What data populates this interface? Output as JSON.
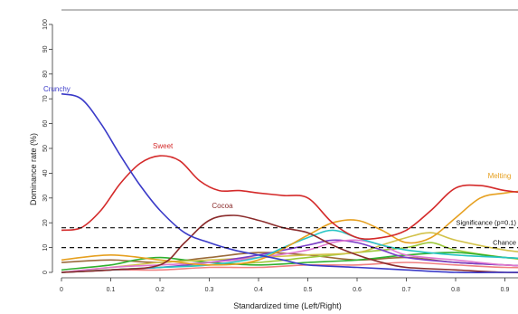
{
  "chart_data": {
    "type": "line",
    "title": "",
    "xlabel": "Standardized time (Left/Right)",
    "ylabel": "Dominance rate (%)",
    "xlim": [
      0,
      1
    ],
    "ylim": [
      0,
      100
    ],
    "x_ticks": [
      0,
      0.1,
      0.2,
      0.3,
      0.4,
      0.5,
      0.6,
      0.7,
      0.8,
      0.9
    ],
    "x_tick_labels": [
      "0",
      "0.1",
      "0.2",
      "0.3",
      "0.4",
      "0.5",
      "0.6",
      "0.7",
      "0.8",
      "0.9"
    ],
    "y_ticks": [
      0,
      10,
      20,
      30,
      40,
      50,
      60,
      70,
      80,
      90,
      100
    ],
    "y_tick_labels": [
      "0",
      "10",
      "20",
      "30",
      "40",
      "50",
      "60",
      "70",
      "80",
      "90",
      "100"
    ],
    "grid": false,
    "reference_lines": [
      {
        "label": "Significance (p=0.1)",
        "y": 18
      },
      {
        "label": "Chance",
        "y": 10
      }
    ],
    "series": [
      {
        "name": "Crunchy",
        "color": "#3a3ac8",
        "labeled": true,
        "label_x": 0.0,
        "label_y": 73,
        "x": [
          0,
          0.04,
          0.08,
          0.12,
          0.16,
          0.2,
          0.25,
          0.3,
          0.35,
          0.4,
          0.45,
          0.5,
          0.6,
          0.7,
          0.8,
          0.9,
          1.0
        ],
        "y": [
          72,
          70,
          60,
          47,
          35,
          25,
          16,
          12,
          9,
          7,
          5,
          3,
          2,
          1,
          0,
          0,
          0
        ]
      },
      {
        "name": "Sweet",
        "color": "#d42a2a",
        "labeled": true,
        "label_x": 0.2,
        "label_y": 50,
        "x": [
          0,
          0.04,
          0.08,
          0.12,
          0.16,
          0.2,
          0.24,
          0.28,
          0.32,
          0.36,
          0.4,
          0.45,
          0.5,
          0.55,
          0.6,
          0.65,
          0.7,
          0.75,
          0.8,
          0.85,
          0.9,
          0.95,
          1.0
        ],
        "y": [
          17,
          18,
          25,
          36,
          44,
          47,
          45,
          37,
          33,
          33,
          32,
          31,
          30,
          20,
          14,
          14,
          17,
          25,
          34,
          35,
          33,
          32,
          32
        ]
      },
      {
        "name": "Cocoa",
        "color": "#8b2b2b",
        "labeled": true,
        "label_x": 0.32,
        "label_y": 26,
        "x": [
          0,
          0.1,
          0.2,
          0.25,
          0.3,
          0.35,
          0.4,
          0.45,
          0.5,
          0.55,
          0.6,
          0.65,
          0.7,
          0.8,
          0.9,
          1.0
        ],
        "y": [
          0,
          1,
          3,
          12,
          21,
          23,
          21,
          18,
          16,
          11,
          7,
          4,
          2,
          1,
          0,
          0
        ]
      },
      {
        "name": "Melting",
        "color": "#e6a020",
        "labeled": true,
        "label_x": 0.88,
        "label_y": 38,
        "x": [
          0,
          0.1,
          0.2,
          0.3,
          0.4,
          0.5,
          0.55,
          0.6,
          0.65,
          0.7,
          0.75,
          0.8,
          0.85,
          0.9,
          0.95,
          1.0
        ],
        "y": [
          5,
          7,
          5,
          3,
          5,
          15,
          20,
          21,
          17,
          12,
          14,
          22,
          30,
          32,
          33,
          33
        ]
      },
      {
        "name": "",
        "color": "#27c4c4",
        "labeled": false,
        "x": [
          0,
          0.1,
          0.2,
          0.3,
          0.4,
          0.45,
          0.5,
          0.55,
          0.6,
          0.65,
          0.7,
          0.8,
          0.9,
          1.0
        ],
        "y": [
          0,
          1,
          2,
          3,
          6,
          10,
          14,
          17,
          14,
          11,
          9,
          7,
          6,
          5
        ]
      },
      {
        "name": "",
        "color": "#e077d0",
        "labeled": false,
        "x": [
          0,
          0.1,
          0.2,
          0.3,
          0.4,
          0.5,
          0.55,
          0.6,
          0.65,
          0.7,
          0.8,
          0.9,
          1.0
        ],
        "y": [
          0,
          2,
          3,
          4,
          6,
          9,
          12,
          13,
          11,
          7,
          5,
          3,
          2
        ]
      },
      {
        "name": "",
        "color": "#7a3ec8",
        "labeled": false,
        "x": [
          0,
          0.1,
          0.2,
          0.3,
          0.4,
          0.5,
          0.55,
          0.6,
          0.65,
          0.7,
          0.8,
          0.9,
          1.0
        ],
        "y": [
          0,
          1,
          2,
          4,
          7,
          11,
          13,
          12,
          9,
          6,
          4,
          3,
          2
        ]
      },
      {
        "name": "",
        "color": "#d2c24a",
        "labeled": false,
        "x": [
          0,
          0.1,
          0.2,
          0.3,
          0.4,
          0.5,
          0.6,
          0.65,
          0.7,
          0.75,
          0.8,
          0.9,
          1.0
        ],
        "y": [
          0,
          2,
          4,
          5,
          6,
          7,
          8,
          11,
          14,
          16,
          13,
          9,
          7
        ]
      },
      {
        "name": "",
        "color": "#2fb02f",
        "labeled": false,
        "x": [
          0,
          0.1,
          0.15,
          0.2,
          0.25,
          0.3,
          0.4,
          0.5,
          0.6,
          0.7,
          0.8,
          0.9,
          1.0
        ],
        "y": [
          1,
          3,
          5,
          6,
          5,
          4,
          3,
          4,
          5,
          7,
          8,
          6,
          5
        ]
      },
      {
        "name": "",
        "color": "#9cc83a",
        "labeled": false,
        "x": [
          0,
          0.1,
          0.2,
          0.3,
          0.4,
          0.5,
          0.6,
          0.7,
          0.75,
          0.8,
          0.9,
          1.0
        ],
        "y": [
          0,
          1,
          2,
          3,
          4,
          6,
          8,
          10,
          12,
          9,
          6,
          4
        ]
      },
      {
        "name": "",
        "color": "#9b6a3a",
        "labeled": false,
        "x": [
          0,
          0.1,
          0.2,
          0.3,
          0.4,
          0.5,
          0.6,
          0.7,
          0.8,
          0.9,
          1.0
        ],
        "y": [
          4,
          5,
          4,
          6,
          8,
          7,
          5,
          6,
          4,
          3,
          2
        ]
      },
      {
        "name": "",
        "color": "#f08080",
        "labeled": false,
        "x": [
          0,
          0.1,
          0.2,
          0.3,
          0.4,
          0.5,
          0.6,
          0.7,
          0.8,
          0.9,
          1.0
        ],
        "y": [
          0,
          1,
          1,
          2,
          2,
          3,
          3,
          4,
          3,
          2,
          2
        ]
      }
    ]
  }
}
